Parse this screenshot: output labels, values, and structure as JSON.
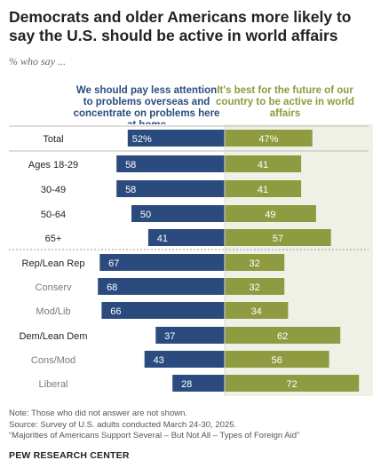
{
  "title": "Democrats and older Americans more likely to say the U.S. should be active in world affairs",
  "subtitle": "% who say ...",
  "colors": {
    "left": "#2b4b7e",
    "right": "#8f9b40",
    "label_main": "#222222",
    "label_sub": "#7a7a7a"
  },
  "chart_data": {
    "type": "bar",
    "orientation": "diverging-horizontal",
    "series": [
      {
        "name": "We should pay less attention to problems overseas and concentrate on problems here at home",
        "values": [
          52,
          58,
          58,
          50,
          41,
          67,
          68,
          66,
          37,
          43,
          28
        ]
      },
      {
        "name": "It's best for the future of our country to be active in world affairs",
        "values": [
          47,
          41,
          41,
          49,
          57,
          32,
          32,
          34,
          62,
          56,
          72
        ]
      }
    ],
    "categories": [
      {
        "label": "Total",
        "level": "main",
        "left_label": "52%",
        "right_label": "47%"
      },
      {
        "label": "Ages 18-29",
        "level": "main",
        "left_label": "58",
        "right_label": "41"
      },
      {
        "label": "30-49",
        "level": "main",
        "left_label": "58",
        "right_label": "41"
      },
      {
        "label": "50-64",
        "level": "main",
        "left_label": "50",
        "right_label": "49"
      },
      {
        "label": "65+",
        "level": "main",
        "left_label": "41",
        "right_label": "57"
      },
      {
        "label": "Rep/Lean Rep",
        "level": "main",
        "left_label": "67",
        "right_label": "32"
      },
      {
        "label": "Conserv",
        "level": "sub",
        "left_label": "68",
        "right_label": "32"
      },
      {
        "label": "Mod/Lib",
        "level": "sub",
        "left_label": "66",
        "right_label": "34"
      },
      {
        "label": "Dem/Lean Dem",
        "level": "main",
        "left_label": "37",
        "right_label": "62"
      },
      {
        "label": "Cons/Mod",
        "level": "sub",
        "left_label": "43",
        "right_label": "56"
      },
      {
        "label": "Liberal",
        "level": "sub",
        "left_label": "28",
        "right_label": "72"
      }
    ],
    "xlim": [
      0,
      100
    ]
  },
  "notes": [
    "Note: Those who did not answer are not shown.",
    "Source: Survey of U.S. adults conducted March 24-30, 2025.",
    "“Majorities of Americans Support Several – But Not All – Types of Foreign Aid”"
  ],
  "brand": "PEW RESEARCH CENTER"
}
